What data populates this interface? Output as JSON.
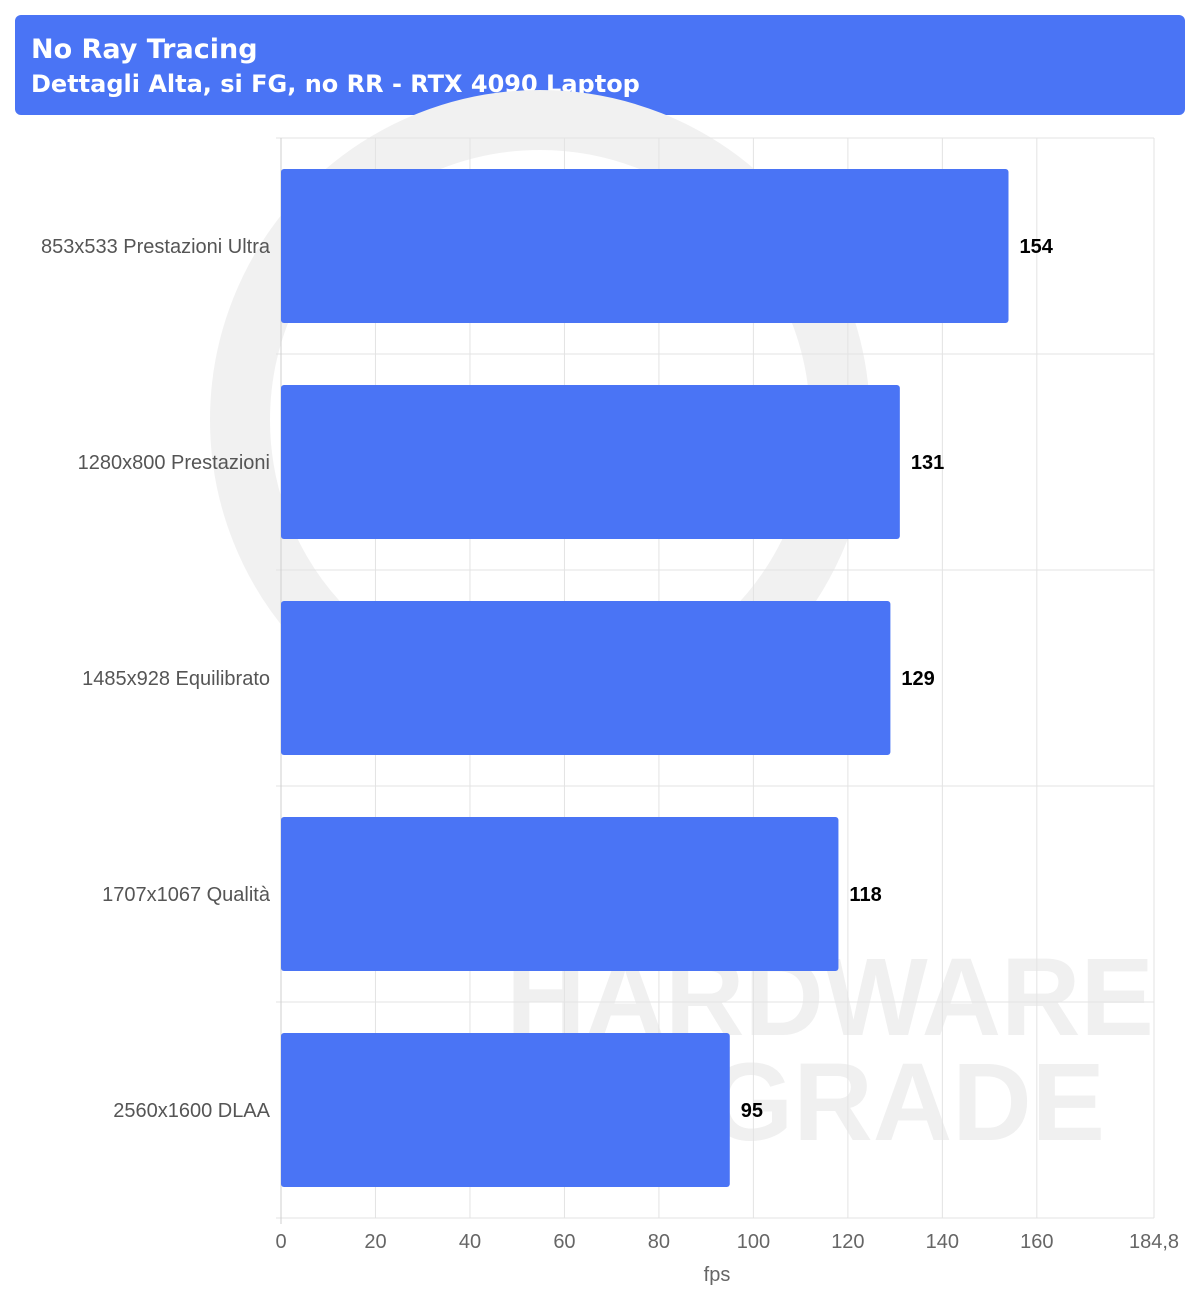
{
  "chart_data": {
    "type": "bar",
    "orientation": "horizontal",
    "title": "No Ray Tracing",
    "subtitle": "Dettagli Alta, si FG, no RR - RTX 4090 Laptop",
    "categories": [
      "853x533 Prestazioni Ultra",
      "1280x800 Prestazioni",
      "1485x928 Equilibrato",
      "1707x1067 Qualità",
      "2560x1600 DLAA"
    ],
    "values": [
      154,
      131,
      129,
      118,
      95
    ],
    "xlabel": "fps",
    "xlim": [
      0,
      184.8
    ],
    "xticks": [
      "0",
      "20",
      "40",
      "60",
      "80",
      "100",
      "120",
      "140",
      "160",
      "184,8"
    ],
    "xtick_values": [
      0,
      20,
      40,
      60,
      80,
      100,
      120,
      140,
      160,
      184.8
    ],
    "grid": true,
    "data_labels": true,
    "bar_color": "#4a74f5",
    "watermark": "HARDWARE UPGRADE"
  }
}
